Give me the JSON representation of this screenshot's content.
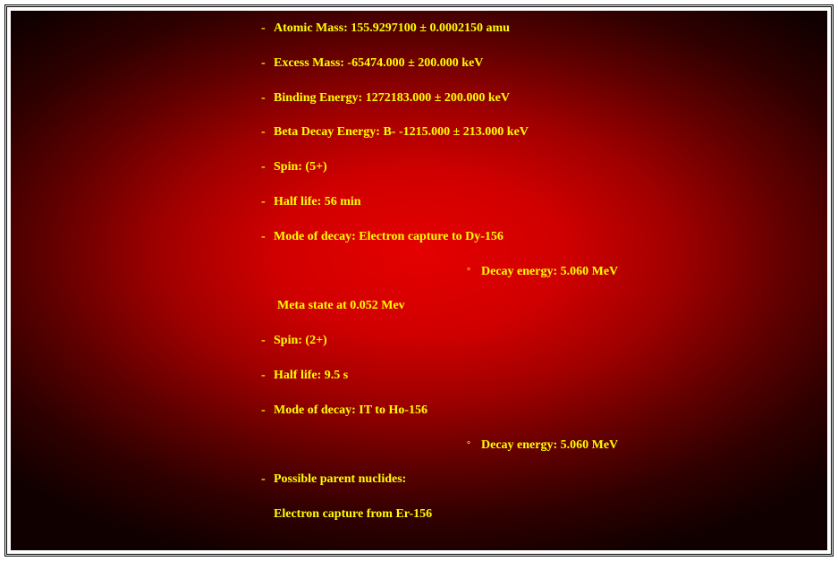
{
  "colors": {
    "text": "#ffff00",
    "bg_center": "#e40000",
    "bg_edge": "#100000",
    "page_bg": "#ffffff",
    "border": "#000000"
  },
  "typography": {
    "font_family": "Times New Roman",
    "font_size_pt": 11,
    "font_weight": "bold"
  },
  "bullets": {
    "primary": "-",
    "secondary": "°"
  },
  "items": [
    {
      "type": "main",
      "text": "Atomic Mass: 155.9297100 ± 0.0002150 amu"
    },
    {
      "type": "main",
      "text": "Excess Mass: -65474.000 ± 200.000 keV"
    },
    {
      "type": "main",
      "text": "Binding Energy: 1272183.000 ± 200.000 keV"
    },
    {
      "type": "main",
      "text": "Beta Decay Energy: B- -1215.000 ± 213.000 keV"
    },
    {
      "type": "main",
      "text": "Spin: (5+)"
    },
    {
      "type": "main",
      "text": "Half life: 56 min"
    },
    {
      "type": "main",
      "text": "Mode of decay: Electron capture to Dy-156"
    },
    {
      "type": "sub",
      "text": "Decay energy: 5.060 MeV"
    },
    {
      "type": "indent",
      "text": "Meta state at 0.052 Mev"
    },
    {
      "type": "main",
      "text": "Spin: (2+)"
    },
    {
      "type": "main",
      "text": "Half life: 9.5 s"
    },
    {
      "type": "main",
      "text": "Mode of decay: IT to Ho-156"
    },
    {
      "type": "sub",
      "text": "Decay energy: 5.060 MeV"
    },
    {
      "type": "main",
      "text": "Possible parent nuclides:"
    },
    {
      "type": "indent_last",
      "text": "Electron capture from Er-156"
    }
  ]
}
